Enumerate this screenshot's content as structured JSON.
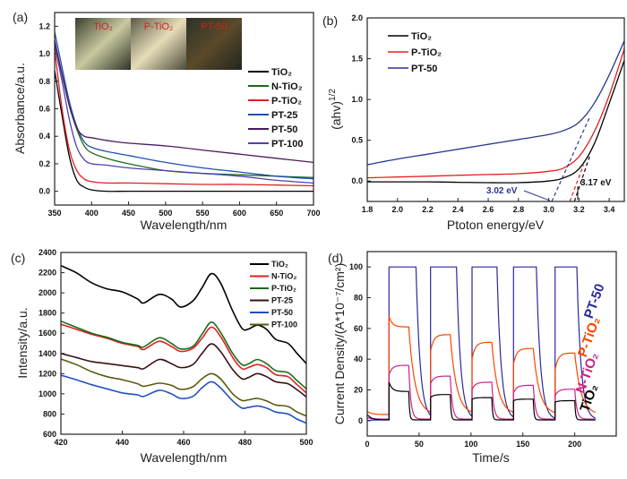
{
  "chart_data": [
    {
      "panel": "(a)",
      "type": "line",
      "xlabel": "Wavelength/nm",
      "ylabel": "Absorbance/a.u.",
      "xlim": [
        350,
        700
      ],
      "ylim": [
        -0.1,
        1.3
      ],
      "xticks": [
        350,
        400,
        450,
        500,
        550,
        600,
        650,
        700
      ],
      "yticks": [
        "0.0",
        "0.2",
        "0.4",
        "0.6",
        "0.8",
        "1.0",
        "1.2"
      ],
      "legend_position": "right",
      "inset_photo_labels": [
        "TiO₂",
        "P-TiO₂",
        "PT-50"
      ],
      "x": [
        350,
        360,
        370,
        380,
        390,
        400,
        420,
        450,
        500,
        550,
        600,
        650,
        700
      ],
      "series": [
        {
          "name": "TiO₂",
          "color": "#000000",
          "values": [
            0.88,
            0.55,
            0.25,
            0.08,
            0.03,
            0.01,
            0,
            0,
            0,
            0,
            0,
            0,
            0
          ]
        },
        {
          "name": "N-TiO₂",
          "color": "#1a6b1a",
          "values": [
            1.08,
            0.85,
            0.62,
            0.45,
            0.33,
            0.28,
            0.24,
            0.2,
            0.15,
            0.13,
            0.12,
            0.11,
            0.1
          ]
        },
        {
          "name": "P-TiO₂",
          "color": "#e02020",
          "values": [
            1.03,
            0.6,
            0.3,
            0.15,
            0.09,
            0.07,
            0.06,
            0.06,
            0.055,
            0.05,
            0.05,
            0.045,
            0.04
          ]
        },
        {
          "name": "PT-25",
          "color": "#2050b0",
          "values": [
            1.16,
            0.9,
            0.65,
            0.47,
            0.36,
            0.32,
            0.29,
            0.26,
            0.21,
            0.17,
            0.14,
            0.11,
            0.09
          ]
        },
        {
          "name": "PT-50",
          "color": "#4a1a5a",
          "values": [
            1.1,
            0.85,
            0.62,
            0.46,
            0.4,
            0.39,
            0.37,
            0.35,
            0.33,
            0.3,
            0.27,
            0.24,
            0.21
          ]
        },
        {
          "name": "PT-100",
          "color": "#5040b0",
          "values": [
            1.06,
            0.8,
            0.52,
            0.32,
            0.23,
            0.2,
            0.19,
            0.17,
            0.15,
            0.13,
            0.11,
            0.08,
            0.06
          ]
        }
      ]
    },
    {
      "panel": "(b)",
      "type": "line",
      "xlabel": "Ptoton energy/eV",
      "ylabel": "(ahv)",
      "ylabel_sup": "1/2",
      "xlim": [
        1.8,
        3.5
      ],
      "ylim": [
        -0.25,
        2.0
      ],
      "xticks": [
        "1.8",
        "2.0",
        "2.2",
        "2.4",
        "2.6",
        "2.8",
        "3.0",
        "3.2",
        "3.4"
      ],
      "yticks": [
        "0.0",
        "0.5",
        "1.0",
        "1.5",
        "2.0"
      ],
      "legend_position": "top-left",
      "x": [
        1.8,
        2.0,
        2.2,
        2.4,
        2.6,
        2.8,
        3.0,
        3.1,
        3.2,
        3.3,
        3.4,
        3.5
      ],
      "series": [
        {
          "name": "TiO₂",
          "color": "#000000",
          "values": [
            -0.01,
            -0.01,
            -0.01,
            -0.015,
            -0.02,
            -0.02,
            0,
            0.04,
            0.15,
            0.45,
            0.95,
            1.48
          ]
        },
        {
          "name": "P-TiO₂",
          "color": "#e02020",
          "values": [
            0.04,
            0.05,
            0.06,
            0.07,
            0.08,
            0.09,
            0.12,
            0.16,
            0.3,
            0.6,
            1.05,
            1.62
          ]
        },
        {
          "name": "PT-50",
          "color": "#2a3590",
          "values": [
            0.2,
            0.27,
            0.33,
            0.39,
            0.45,
            0.51,
            0.57,
            0.62,
            0.72,
            0.95,
            1.3,
            1.72
          ]
        }
      ],
      "tangents": [
        {
          "color": "#2a3590",
          "from": [
            3.02,
            -0.25
          ],
          "to": [
            3.27,
            0.78
          ]
        },
        {
          "color": "#e02020",
          "from": [
            3.14,
            -0.25
          ],
          "to": [
            3.23,
            0.2
          ]
        },
        {
          "color": "#000000",
          "from": [
            3.17,
            -0.25
          ],
          "to": [
            3.27,
            0.3
          ]
        }
      ],
      "annotations": [
        {
          "text": "3.02 eV",
          "color": "#2a3590",
          "points_to": [
            3.02,
            -0.24
          ]
        },
        {
          "text": "3.17 eV",
          "color": "#111111",
          "points_to": [
            3.18,
            -0.23
          ]
        }
      ]
    },
    {
      "panel": "(c)",
      "type": "line",
      "xlabel": "Wavelength/nm",
      "ylabel": "Intensity/a.u.",
      "xlim": [
        420,
        500
      ],
      "ylim": [
        600,
        2400
      ],
      "xticks": [
        420,
        440,
        460,
        480,
        500
      ],
      "yticks": [
        600,
        800,
        1000,
        1200,
        1400,
        1600,
        1800,
        2000,
        2200,
        2400
      ],
      "legend_position": "top-right",
      "x": [
        420,
        425,
        430,
        435,
        440,
        445,
        447,
        452,
        456,
        459,
        463,
        466,
        469,
        472,
        476,
        479,
        481,
        484,
        487,
        490,
        494,
        497,
        500
      ],
      "series": [
        {
          "name": "TiO₂",
          "color": "#000000",
          "values": [
            2270,
            2200,
            2100,
            2040,
            2010,
            1940,
            1900,
            1985,
            1940,
            1860,
            1920,
            2050,
            2190,
            2100,
            1820,
            1650,
            1640,
            1680,
            1640,
            1540,
            1500,
            1400,
            1300
          ]
        },
        {
          "name": "N-TiO₂",
          "color": "#e02020",
          "values": [
            1690,
            1640,
            1590,
            1550,
            1500,
            1470,
            1440,
            1520,
            1470,
            1420,
            1450,
            1550,
            1660,
            1570,
            1360,
            1250,
            1260,
            1290,
            1260,
            1190,
            1170,
            1090,
            1010
          ]
        },
        {
          "name": "P-TiO₂",
          "color": "#1a6b1a",
          "values": [
            1720,
            1660,
            1600,
            1560,
            1510,
            1480,
            1465,
            1555,
            1500,
            1445,
            1470,
            1590,
            1710,
            1610,
            1400,
            1290,
            1295,
            1340,
            1300,
            1230,
            1210,
            1130,
            1050
          ]
        },
        {
          "name": "PT-25",
          "color": "#3a1010",
          "values": [
            1400,
            1360,
            1320,
            1300,
            1280,
            1260,
            1250,
            1340,
            1300,
            1260,
            1290,
            1400,
            1495,
            1420,
            1240,
            1150,
            1160,
            1200,
            1170,
            1120,
            1100,
            1040,
            970
          ]
        },
        {
          "name": "PT-50",
          "color": "#2050c0",
          "values": [
            1185,
            1140,
            1090,
            1050,
            1010,
            990,
            975,
            1035,
            1000,
            955,
            975,
            1060,
            1120,
            1060,
            930,
            860,
            865,
            880,
            860,
            820,
            800,
            750,
            710
          ]
        },
        {
          "name": "PT-100",
          "color": "#5a5a10",
          "values": [
            1345,
            1290,
            1220,
            1170,
            1140,
            1100,
            1075,
            1105,
            1085,
            1045,
            1070,
            1150,
            1200,
            1150,
            1000,
            935,
            940,
            955,
            930,
            890,
            875,
            820,
            780
          ]
        }
      ]
    },
    {
      "panel": "(d)",
      "type": "line",
      "xlabel": "Time/s",
      "ylabel": "Current Density/(A*10⁻⁷/cm²)",
      "xlim": [
        0,
        240
      ],
      "ylim": [
        -10,
        110
      ],
      "xticks": [
        0,
        50,
        100,
        150,
        200
      ],
      "yticks": [
        0,
        20,
        40,
        60,
        80,
        100
      ],
      "legend_position": "right (rotated labels)",
      "t_end": 220,
      "series": [
        {
          "name": "PT-50",
          "color": "#2a2a9a",
          "initial": 0,
          "dark": 0.5,
          "cycles": [
            {
              "on": 21,
              "off": 47,
              "start": 100,
              "end": 100
            },
            {
              "on": 61,
              "off": 86,
              "start": 100,
              "end": 100
            },
            {
              "on": 101,
              "off": 125,
              "start": 100,
              "end": 100
            },
            {
              "on": 141,
              "off": 163,
              "start": 100,
              "end": 100
            },
            {
              "on": 181,
              "off": 202,
              "start": 100,
              "end": 100
            }
          ]
        },
        {
          "name": "P-TiO₂",
          "color": "#ff4400",
          "initial": 6,
          "dark": 4,
          "cycles": [
            {
              "on": 21,
              "off": 40,
              "start": 68,
              "end": 61
            },
            {
              "on": 61,
              "off": 80,
              "start": 45,
              "end": 56
            },
            {
              "on": 101,
              "off": 120,
              "start": 40,
              "end": 51
            },
            {
              "on": 141,
              "off": 160,
              "start": 37,
              "end": 47
            },
            {
              "on": 181,
              "off": 200,
              "start": 33,
              "end": 44
            }
          ]
        },
        {
          "name": "N-TiO₂",
          "color": "#cc2288",
          "initial": 2,
          "dark": 1,
          "cycles": [
            {
              "on": 21,
              "off": 40,
              "start": 30,
              "end": 36
            },
            {
              "on": 61,
              "off": 80,
              "start": 24,
              "end": 29
            },
            {
              "on": 101,
              "off": 120,
              "start": 20,
              "end": 25
            },
            {
              "on": 141,
              "off": 160,
              "start": 18,
              "end": 23
            },
            {
              "on": 181,
              "off": 200,
              "start": 16,
              "end": 20.5
            }
          ]
        },
        {
          "name": "TiO₂",
          "color": "#000000",
          "initial": 4,
          "dark": 0.5,
          "cycles": [
            {
              "on": 21,
              "off": 40,
              "start": 25,
              "end": 19
            },
            {
              "on": 61,
              "off": 80,
              "start": 15,
              "end": 17
            },
            {
              "on": 101,
              "off": 120,
              "start": 14,
              "end": 15
            },
            {
              "on": 141,
              "off": 160,
              "start": 13,
              "end": 14
            },
            {
              "on": 181,
              "off": 200,
              "start": 12,
              "end": 13
            }
          ]
        }
      ]
    }
  ]
}
